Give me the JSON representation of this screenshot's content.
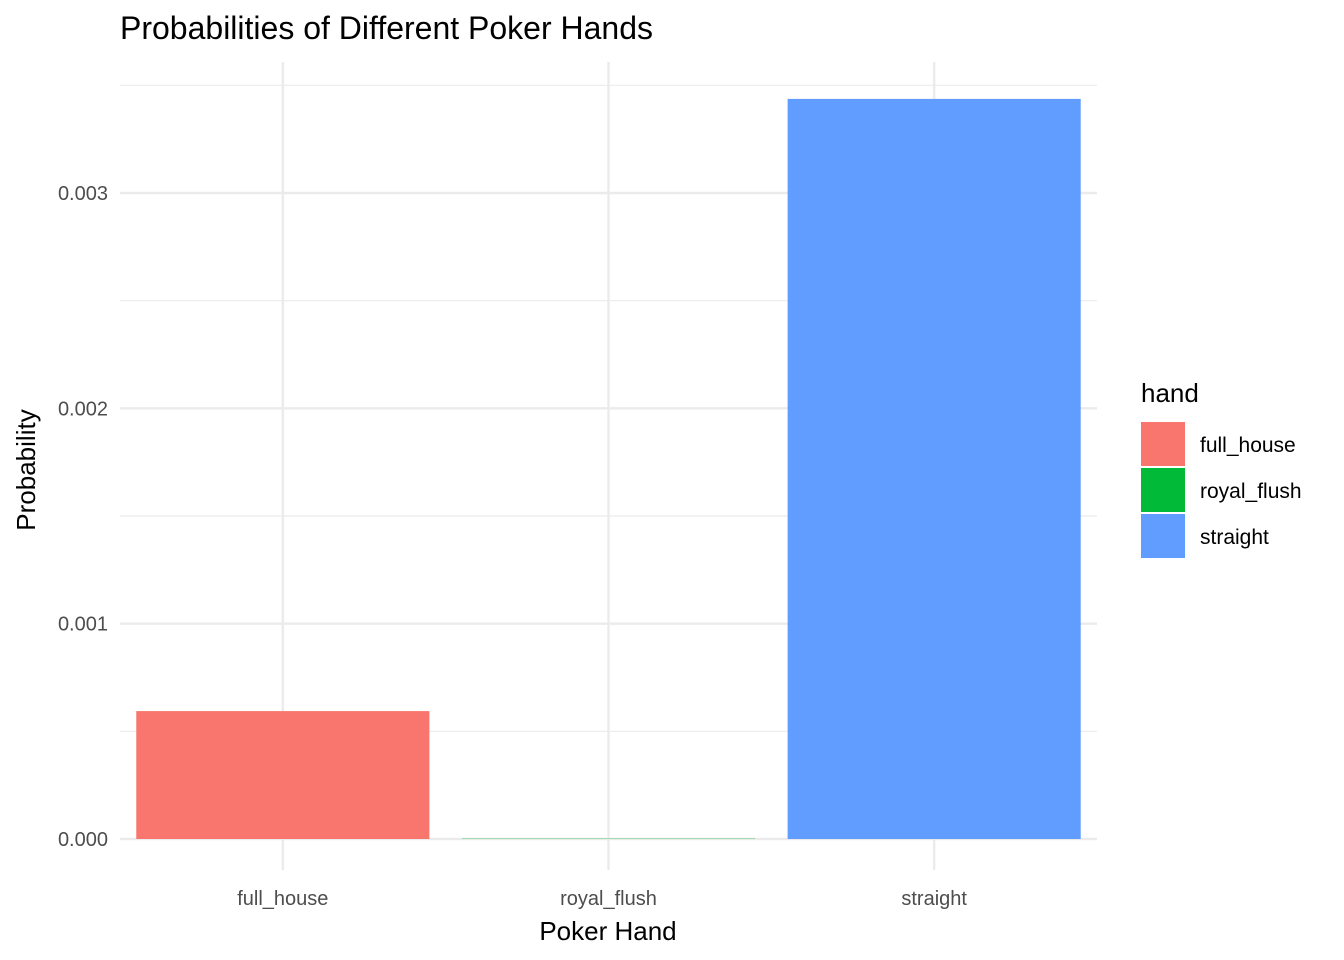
{
  "chart_data": {
    "type": "bar",
    "title": "Probabilities of Different Poker Hands",
    "xlabel": "Poker Hand",
    "ylabel": "Probability",
    "categories": [
      "full_house",
      "royal_flush",
      "straight"
    ],
    "values": [
      0.000594,
      1.5e-06,
      0.003437
    ],
    "colors": [
      "#F8766D",
      "#00BA38",
      "#619CFF"
    ],
    "ylim": [
      0,
      0.0035
    ],
    "yticks": [
      0,
      0.001,
      0.002,
      0.003
    ],
    "ytick_labels": [
      "0.000",
      "0.001",
      "0.002",
      "0.003"
    ],
    "grid": true,
    "legend": {
      "title": "hand",
      "position": "right",
      "items": [
        "full_house",
        "royal_flush",
        "straight"
      ]
    }
  }
}
